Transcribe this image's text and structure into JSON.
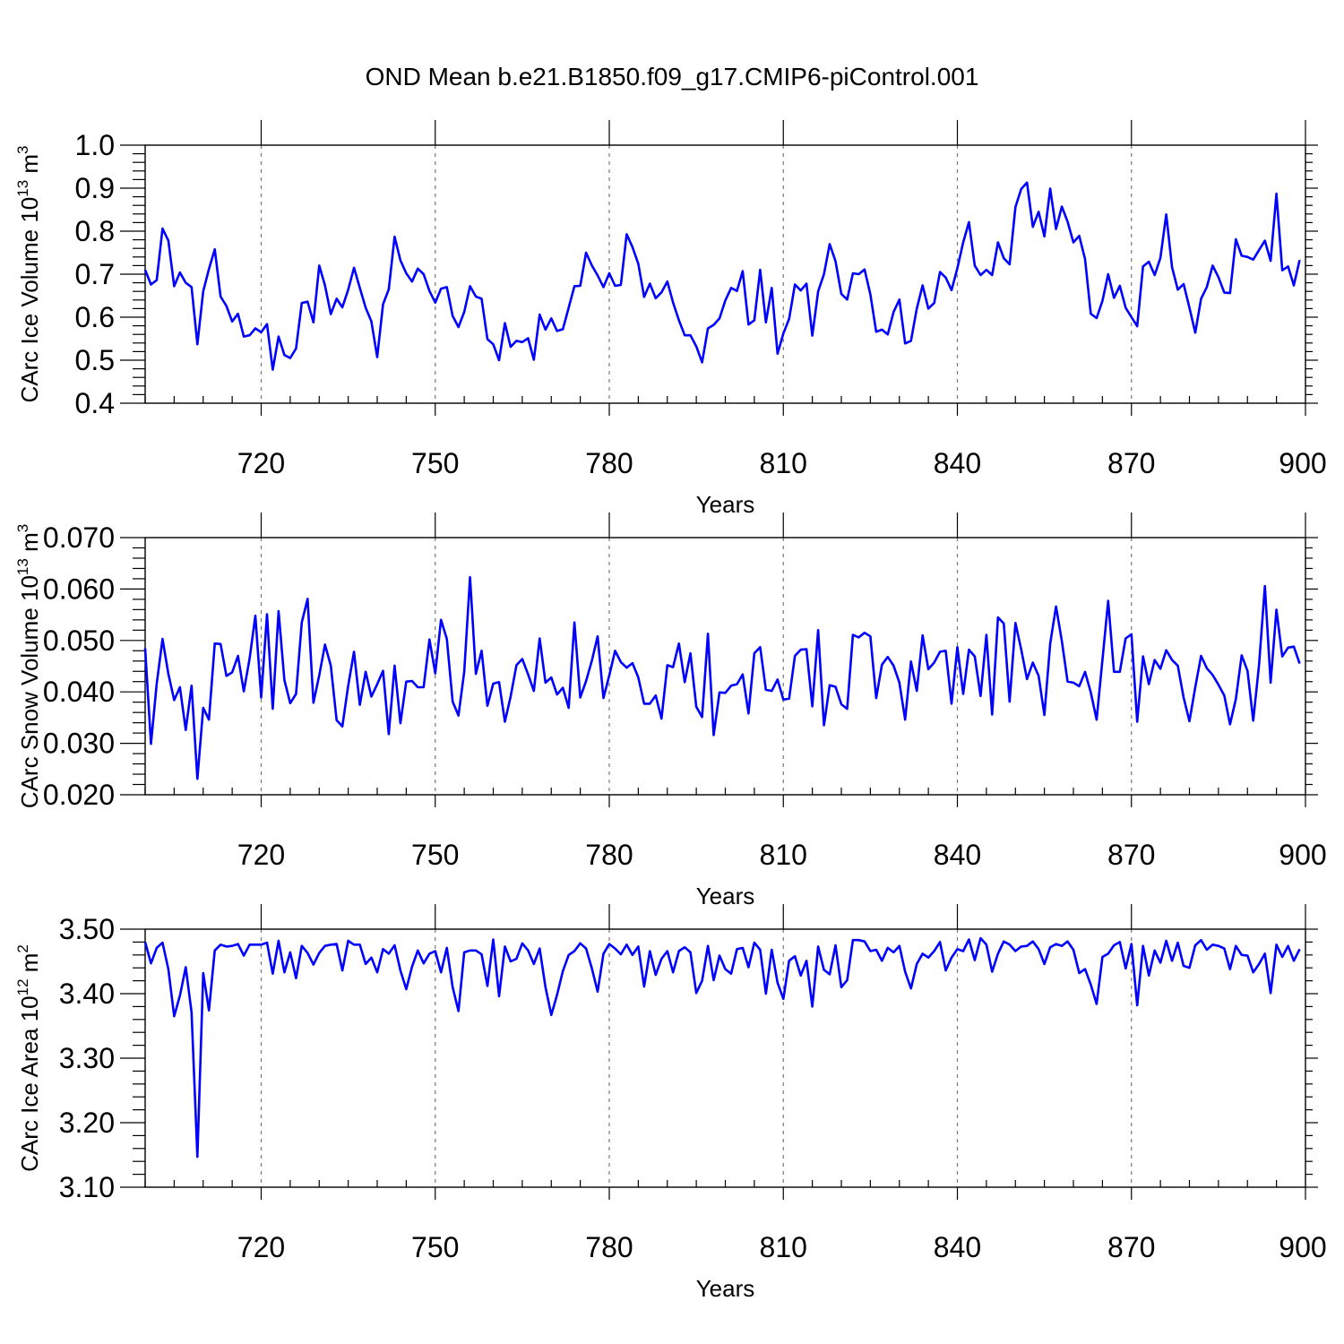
{
  "title": "OND Mean b.e21.B1850.f09_g17.CMIP6-piControl.001",
  "colors": {
    "line": "#0000ff",
    "frame": "#000000",
    "grid": "#777777"
  },
  "chart_data": [
    {
      "type": "line",
      "name": "ice-volume",
      "xlabel": "Years",
      "ylabel": "CArc Ice Volume 10",
      "ylabel_exp": "13",
      "ylabel_unit": "m",
      "ylabel_unit_exp": "3",
      "xlim": [
        700,
        900
      ],
      "ylim": [
        0.4,
        1.0
      ],
      "x_ticks": [
        720,
        750,
        780,
        810,
        840,
        870,
        900
      ],
      "x_tick_labels": [
        "720",
        "750",
        "780",
        "810",
        "840",
        "870",
        "900"
      ],
      "y_ticks": [
        0.4,
        0.5,
        0.6,
        0.7,
        0.8,
        0.9,
        1.0
      ],
      "y_tick_labels": [
        "0.4",
        "0.5",
        "0.6",
        "0.7",
        "0.8",
        "0.9",
        "1.0"
      ],
      "grid": "vertical-dashed",
      "x_start": 700,
      "x_step": 1,
      "values": [
        0.71,
        0.676,
        0.686,
        0.806,
        0.778,
        0.672,
        0.704,
        0.68,
        0.67,
        0.537,
        0.66,
        0.712,
        0.758,
        0.648,
        0.626,
        0.59,
        0.608,
        0.555,
        0.558,
        0.574,
        0.565,
        0.584,
        0.478,
        0.555,
        0.512,
        0.505,
        0.527,
        0.633,
        0.636,
        0.588,
        0.72,
        0.674,
        0.607,
        0.643,
        0.623,
        0.664,
        0.715,
        0.668,
        0.622,
        0.59,
        0.507,
        0.63,
        0.665,
        0.787,
        0.732,
        0.702,
        0.683,
        0.713,
        0.7,
        0.661,
        0.634,
        0.666,
        0.67,
        0.603,
        0.577,
        0.612,
        0.672,
        0.648,
        0.643,
        0.549,
        0.537,
        0.5,
        0.586,
        0.531,
        0.545,
        0.542,
        0.551,
        0.501,
        0.606,
        0.571,
        0.597,
        0.568,
        0.572,
        0.622,
        0.672,
        0.673,
        0.75,
        0.72,
        0.697,
        0.67,
        0.702,
        0.673,
        0.675,
        0.793,
        0.763,
        0.724,
        0.647,
        0.678,
        0.644,
        0.658,
        0.683,
        0.634,
        0.593,
        0.558,
        0.558,
        0.532,
        0.495,
        0.574,
        0.582,
        0.597,
        0.639,
        0.668,
        0.661,
        0.707,
        0.583,
        0.593,
        0.71,
        0.588,
        0.668,
        0.515,
        0.562,
        0.596,
        0.676,
        0.662,
        0.678,
        0.557,
        0.66,
        0.7,
        0.77,
        0.73,
        0.654,
        0.641,
        0.702,
        0.7,
        0.711,
        0.653,
        0.566,
        0.571,
        0.56,
        0.612,
        0.641,
        0.539,
        0.545,
        0.62,
        0.674,
        0.62,
        0.633,
        0.705,
        0.692,
        0.663,
        0.714,
        0.774,
        0.821,
        0.72,
        0.698,
        0.71,
        0.698,
        0.774,
        0.737,
        0.723,
        0.856,
        0.898,
        0.913,
        0.81,
        0.845,
        0.788,
        0.899,
        0.805,
        0.857,
        0.822,
        0.774,
        0.789,
        0.735,
        0.608,
        0.598,
        0.638,
        0.7,
        0.645,
        0.673,
        0.622,
        0.6,
        0.579,
        0.718,
        0.729,
        0.698,
        0.738,
        0.839,
        0.716,
        0.664,
        0.677,
        0.622,
        0.564,
        0.643,
        0.67,
        0.72,
        0.693,
        0.657,
        0.656,
        0.781,
        0.743,
        0.74,
        0.734,
        0.756,
        0.778,
        0.731,
        0.887,
        0.709,
        0.718,
        0.674,
        0.733
      ]
    },
    {
      "type": "line",
      "name": "snow-volume",
      "xlabel": "Years",
      "ylabel": "CArc Snow Volume 10",
      "ylabel_exp": "13",
      "ylabel_unit": "m",
      "ylabel_unit_exp": "3",
      "xlim": [
        700,
        900
      ],
      "ylim": [
        0.02,
        0.07
      ],
      "x_ticks": [
        720,
        750,
        780,
        810,
        840,
        870,
        900
      ],
      "x_tick_labels": [
        "720",
        "750",
        "780",
        "810",
        "840",
        "870",
        "900"
      ],
      "y_ticks": [
        0.02,
        0.03,
        0.04,
        0.05,
        0.06,
        0.07
      ],
      "y_tick_labels": [
        "0.020",
        "0.030",
        "0.040",
        "0.050",
        "0.060",
        "0.070"
      ],
      "grid": "vertical-dashed",
      "x_start": 700,
      "x_step": 1,
      "values": [
        0.0485,
        0.0299,
        0.0416,
        0.0503,
        0.0435,
        0.0384,
        0.0409,
        0.0326,
        0.0412,
        0.0231,
        0.0369,
        0.0346,
        0.0494,
        0.0493,
        0.0431,
        0.0438,
        0.047,
        0.0401,
        0.0465,
        0.0548,
        0.0389,
        0.0551,
        0.0367,
        0.0557,
        0.0423,
        0.0378,
        0.0396,
        0.0535,
        0.0581,
        0.0379,
        0.0432,
        0.0492,
        0.0451,
        0.0345,
        0.0333,
        0.0412,
        0.0478,
        0.0375,
        0.0439,
        0.0391,
        0.0415,
        0.0441,
        0.0318,
        0.0451,
        0.0339,
        0.042,
        0.0421,
        0.0409,
        0.0409,
        0.0502,
        0.0436,
        0.054,
        0.0503,
        0.0381,
        0.0354,
        0.0439,
        0.0623,
        0.0435,
        0.048,
        0.0373,
        0.0416,
        0.0419,
        0.0342,
        0.0391,
        0.0452,
        0.0464,
        0.0434,
        0.0402,
        0.0504,
        0.0418,
        0.0428,
        0.0395,
        0.0408,
        0.0369,
        0.0535,
        0.0389,
        0.0421,
        0.0461,
        0.0508,
        0.0388,
        0.0432,
        0.048,
        0.0458,
        0.0447,
        0.0456,
        0.0428,
        0.0377,
        0.0377,
        0.0393,
        0.0348,
        0.0452,
        0.0448,
        0.0494,
        0.0419,
        0.0475,
        0.0371,
        0.0351,
        0.0513,
        0.0316,
        0.0399,
        0.0398,
        0.0412,
        0.0415,
        0.0434,
        0.0358,
        0.0475,
        0.0487,
        0.0404,
        0.0402,
        0.0424,
        0.0385,
        0.0387,
        0.047,
        0.0482,
        0.0483,
        0.0372,
        0.052,
        0.0335,
        0.0413,
        0.041,
        0.0376,
        0.0367,
        0.0511,
        0.0506,
        0.0515,
        0.0508,
        0.0388,
        0.0453,
        0.0468,
        0.0451,
        0.0418,
        0.0346,
        0.0459,
        0.0402,
        0.051,
        0.0444,
        0.0457,
        0.0478,
        0.048,
        0.0377,
        0.0487,
        0.0396,
        0.0482,
        0.0469,
        0.0392,
        0.0511,
        0.0356,
        0.0545,
        0.0533,
        0.0381,
        0.0534,
        0.0483,
        0.0425,
        0.0457,
        0.0431,
        0.0355,
        0.0494,
        0.0566,
        0.0499,
        0.042,
        0.0418,
        0.0411,
        0.0439,
        0.0399,
        0.0346,
        0.0462,
        0.0577,
        0.0439,
        0.0439,
        0.0504,
        0.0512,
        0.0342,
        0.0469,
        0.0415,
        0.0462,
        0.0445,
        0.0481,
        0.0462,
        0.0451,
        0.0389,
        0.0343,
        0.0409,
        0.047,
        0.0446,
        0.0433,
        0.0414,
        0.0393,
        0.0337,
        0.0386,
        0.0471,
        0.0441,
        0.0344,
        0.0453,
        0.0606,
        0.0418,
        0.056,
        0.0469,
        0.0486,
        0.0488,
        0.0455
      ]
    },
    {
      "type": "line",
      "name": "ice-area",
      "xlabel": "Years",
      "ylabel": "CArc Ice Area 10",
      "ylabel_exp": "12",
      "ylabel_unit": "m",
      "ylabel_unit_exp": "2",
      "xlim": [
        700,
        900
      ],
      "ylim": [
        3.1,
        3.5
      ],
      "x_ticks": [
        720,
        750,
        780,
        810,
        840,
        870,
        900
      ],
      "x_tick_labels": [
        "720",
        "750",
        "780",
        "810",
        "840",
        "870",
        "900"
      ],
      "y_ticks": [
        3.1,
        3.2,
        3.3,
        3.4,
        3.5
      ],
      "y_tick_labels": [
        "3.10",
        "3.20",
        "3.30",
        "3.40",
        "3.50"
      ],
      "grid": "vertical-dashed",
      "x_start": 700,
      "x_step": 1,
      "values": [
        3.48,
        3.447,
        3.471,
        3.479,
        3.438,
        3.365,
        3.397,
        3.441,
        3.371,
        3.147,
        3.432,
        3.374,
        3.467,
        3.476,
        3.473,
        3.474,
        3.477,
        3.459,
        3.476,
        3.476,
        3.476,
        3.479,
        3.431,
        3.482,
        3.433,
        3.464,
        3.424,
        3.474,
        3.463,
        3.445,
        3.463,
        3.474,
        3.476,
        3.477,
        3.436,
        3.482,
        3.476,
        3.476,
        3.446,
        3.456,
        3.433,
        3.469,
        3.462,
        3.475,
        3.436,
        3.407,
        3.442,
        3.467,
        3.447,
        3.462,
        3.466,
        3.433,
        3.471,
        3.41,
        3.373,
        3.464,
        3.467,
        3.467,
        3.461,
        3.412,
        3.484,
        3.396,
        3.473,
        3.45,
        3.454,
        3.478,
        3.467,
        3.446,
        3.47,
        3.41,
        3.367,
        3.398,
        3.435,
        3.46,
        3.466,
        3.478,
        3.47,
        3.439,
        3.403,
        3.462,
        3.477,
        3.47,
        3.461,
        3.476,
        3.46,
        3.473,
        3.411,
        3.466,
        3.429,
        3.454,
        3.466,
        3.433,
        3.466,
        3.472,
        3.464,
        3.401,
        3.42,
        3.474,
        3.421,
        3.459,
        3.438,
        3.431,
        3.469,
        3.471,
        3.441,
        3.479,
        3.468,
        3.4,
        3.468,
        3.417,
        3.392,
        3.451,
        3.458,
        3.428,
        3.451,
        3.38,
        3.473,
        3.437,
        3.43,
        3.475,
        3.41,
        3.421,
        3.483,
        3.483,
        3.481,
        3.466,
        3.468,
        3.451,
        3.471,
        3.464,
        3.474,
        3.434,
        3.408,
        3.446,
        3.462,
        3.456,
        3.466,
        3.48,
        3.436,
        3.456,
        3.469,
        3.466,
        3.484,
        3.452,
        3.486,
        3.476,
        3.434,
        3.462,
        3.481,
        3.476,
        3.466,
        3.473,
        3.474,
        3.481,
        3.469,
        3.446,
        3.472,
        3.477,
        3.474,
        3.481,
        3.468,
        3.432,
        3.438,
        3.414,
        3.384,
        3.457,
        3.462,
        3.475,
        3.48,
        3.439,
        3.477,
        3.382,
        3.474,
        3.428,
        3.467,
        3.448,
        3.482,
        3.451,
        3.479,
        3.443,
        3.44,
        3.475,
        3.483,
        3.468,
        3.476,
        3.474,
        3.47,
        3.438,
        3.474,
        3.46,
        3.459,
        3.433,
        3.446,
        3.462,
        3.401,
        3.476,
        3.457,
        3.474,
        3.451,
        3.469
      ]
    }
  ]
}
